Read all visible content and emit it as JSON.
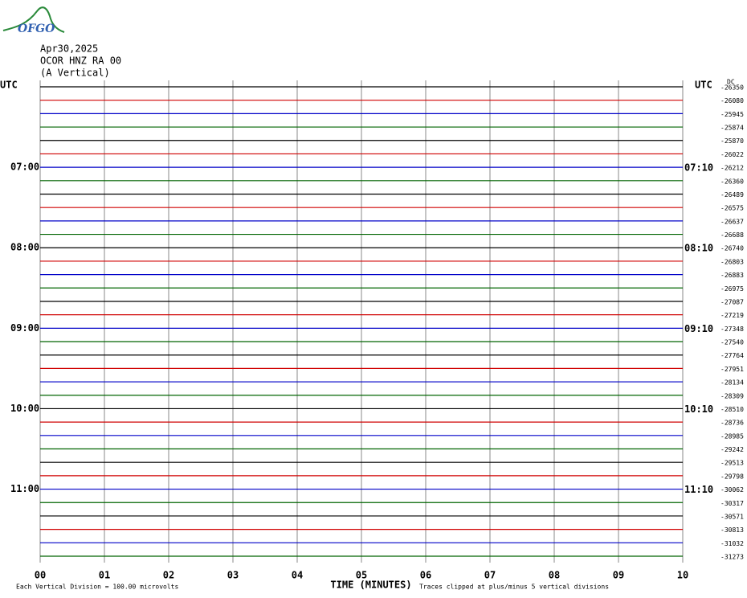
{
  "logo": "OFGO",
  "header": {
    "date": "Apr30,2025",
    "station": "OCOR HNZ RA 00",
    "component": "(A Vertical)"
  },
  "chart_data": {
    "type": "helicorder",
    "left_label": "UTC",
    "right_label": "UTC",
    "offset_label": "DC",
    "x_label": "TIME (MINUTES)",
    "scale_note": "Each Vertical Division =  100.00 microvolts",
    "clip_note": "Traces clipped at plus/minus 5 vertical divisions",
    "xlim": [
      0,
      10
    ],
    "xticks": [
      {
        "value": 0,
        "label": "00"
      },
      {
        "value": 1,
        "label": "01"
      },
      {
        "value": 2,
        "label": "02"
      },
      {
        "value": 3,
        "label": "03"
      },
      {
        "value": 4,
        "label": "04"
      },
      {
        "value": 5,
        "label": "05"
      },
      {
        "value": 6,
        "label": "06"
      },
      {
        "value": 7,
        "label": "07"
      },
      {
        "value": 8,
        "label": "08"
      },
      {
        "value": 9,
        "label": "09"
      },
      10
    ],
    "grid": true,
    "colors": [
      "#000000",
      "#d00000",
      "#0000c8",
      "#006400"
    ],
    "left_times": [
      null,
      null,
      null,
      null,
      null,
      null,
      "07:00",
      null,
      null,
      null,
      null,
      null,
      "08:00",
      null,
      null,
      null,
      null,
      null,
      "09:00",
      null,
      null,
      null,
      null,
      null,
      "10:00",
      null,
      null,
      null,
      null,
      null,
      "11:00",
      null,
      null,
      null,
      null,
      null
    ],
    "right_times": [
      null,
      null,
      null,
      null,
      null,
      null,
      "07:10",
      null,
      null,
      null,
      null,
      null,
      "08:10",
      null,
      null,
      null,
      null,
      null,
      "09:10",
      null,
      null,
      null,
      null,
      null,
      "10:10",
      null,
      null,
      null,
      null,
      null,
      "11:10",
      null,
      null,
      null,
      null,
      null
    ],
    "dc_offsets": [
      -26350,
      -26080,
      -25945,
      -25874,
      -25870,
      -26022,
      -26212,
      -26360,
      -26489,
      -26575,
      -26637,
      -26688,
      -26740,
      -26803,
      -26883,
      -26975,
      -27087,
      -27219,
      -27348,
      -27540,
      -27764,
      -27951,
      -28134,
      -28309,
      -28510,
      -28736,
      -28985,
      -29242,
      -29513,
      -29798,
      -30062,
      -30317,
      -30571,
      -30813,
      -31032,
      -31273
    ]
  }
}
